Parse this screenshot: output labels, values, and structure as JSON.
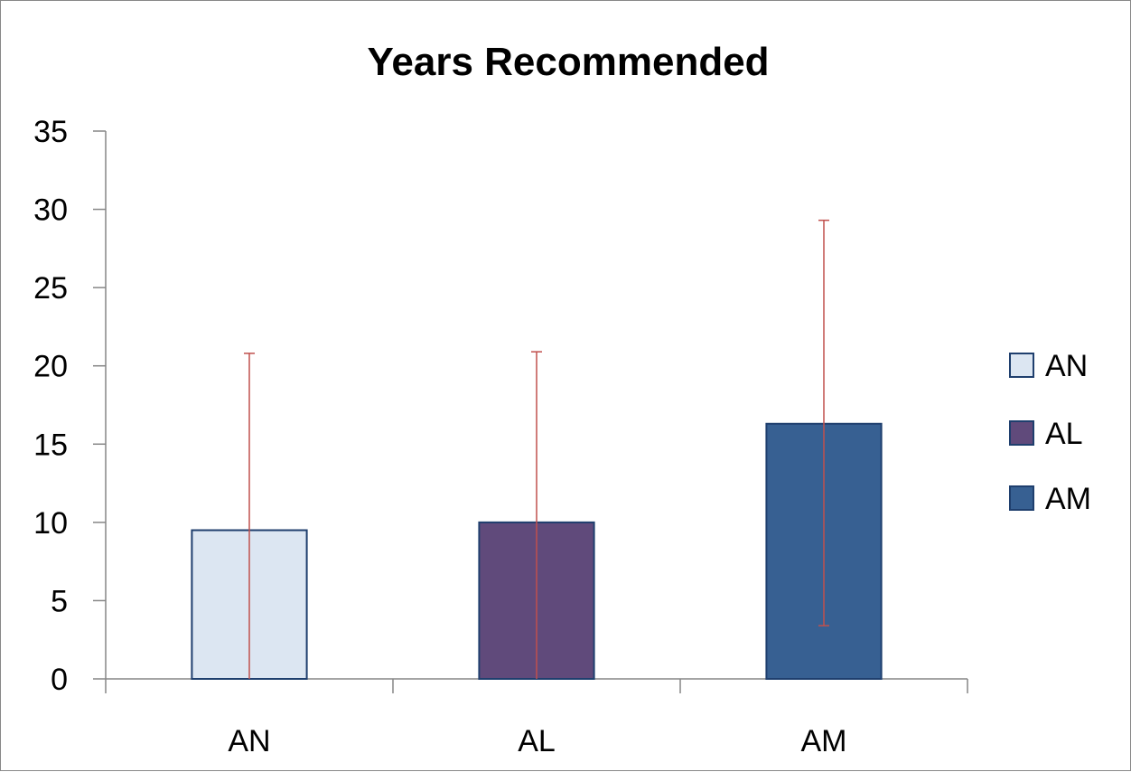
{
  "chart_data": {
    "type": "bar",
    "title": "Years Recommended",
    "xlabel": "",
    "ylabel": "",
    "categories": [
      "AN",
      "AL",
      "AM"
    ],
    "values": [
      9.5,
      10.0,
      16.3
    ],
    "error_bars": [
      {
        "low": 0.0,
        "high": 20.8
      },
      {
        "low": 0.0,
        "high": 20.9
      },
      {
        "low": 3.4,
        "high": 29.3
      }
    ],
    "colors": [
      "#dce6f2",
      "#604a7b",
      "#376092"
    ],
    "edge_colors": [
      "#1f3f6e",
      "#1f3f6e",
      "#1f3f6e"
    ],
    "error_bar_color": "#c0504d",
    "ylim": [
      0,
      35
    ],
    "yticks": [
      0,
      5,
      10,
      15,
      20,
      25,
      30,
      35
    ],
    "grid": false,
    "legend": {
      "position": "right",
      "entries": [
        "AN",
        "AL",
        "AM"
      ]
    }
  }
}
